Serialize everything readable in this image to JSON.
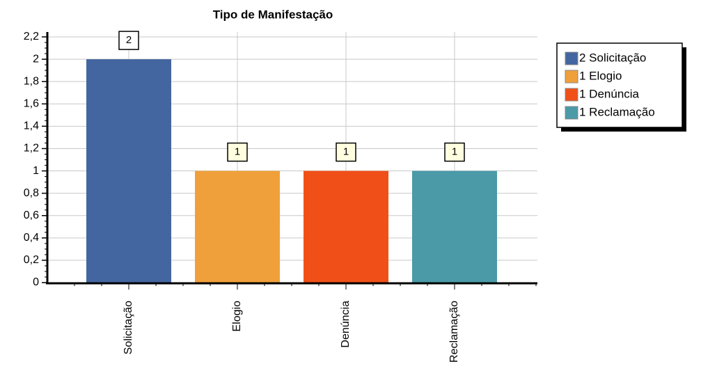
{
  "chart_data": {
    "type": "bar",
    "title": "Tipo de Manifestação",
    "categories": [
      "Solicitação",
      "Elogio",
      "Denúncia",
      "Reclamação"
    ],
    "values": [
      2,
      1,
      1,
      1
    ],
    "colors": [
      "#4466a0",
      "#f0a03a",
      "#f05018",
      "#4a9aa8"
    ],
    "legend_labels": [
      "2 Solicitação",
      "1 Elogio",
      "1 Denúncia",
      "1 Reclamação"
    ],
    "legend": "top-right",
    "ylim": [
      0,
      2.2
    ],
    "yticks": [
      0,
      {
        "value": 0.2,
        "label": "0,2"
      },
      {
        "value": 0.4,
        "label": "0,4"
      },
      {
        "value": 0.6,
        "label": "0,6"
      },
      {
        "value": 0.8,
        "label": "0,8"
      },
      1,
      {
        "value": 1.2,
        "label": "1,2"
      },
      {
        "value": 1.4,
        "label": "1,4"
      },
      {
        "value": 1.6,
        "label": "1,6"
      },
      {
        "value": 1.8,
        "label": "1,8"
      },
      2,
      {
        "value": 2.2,
        "label": "2,2"
      }
    ],
    "grid": true
  }
}
